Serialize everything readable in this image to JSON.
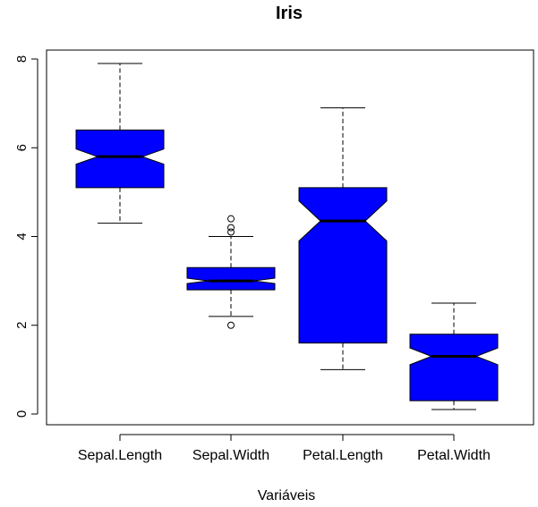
{
  "chart_data": {
    "type": "boxplot",
    "title": "Iris",
    "xlabel": "Variáveis",
    "ylabel": "",
    "ylim": [
      0,
      8
    ],
    "yticks": [
      "0",
      "2",
      "4",
      "6",
      "8"
    ],
    "notched": true,
    "fill_color": "#0000ff",
    "categories": [
      "Sepal.Length",
      "Sepal.Width",
      "Petal.Length",
      "Petal.Width"
    ],
    "boxes": [
      {
        "name": "Sepal.Length",
        "whisker_low": 4.3,
        "q1": 5.1,
        "median": 5.8,
        "q3": 6.4,
        "whisker_high": 7.9,
        "notch_low": 5.63,
        "notch_high": 5.97,
        "outliers": []
      },
      {
        "name": "Sepal.Width",
        "whisker_low": 2.2,
        "q1": 2.8,
        "median": 3.0,
        "q3": 3.3,
        "whisker_high": 4.0,
        "notch_low": 2.94,
        "notch_high": 3.06,
        "outliers": [
          2.0,
          4.1,
          4.2,
          4.4
        ]
      },
      {
        "name": "Petal.Length",
        "whisker_low": 1.0,
        "q1": 1.6,
        "median": 4.35,
        "q3": 5.1,
        "whisker_high": 6.9,
        "notch_low": 3.9,
        "notch_high": 4.8,
        "outliers": []
      },
      {
        "name": "Petal.Width",
        "whisker_low": 0.1,
        "q1": 0.3,
        "median": 1.3,
        "q3": 1.8,
        "whisker_high": 2.5,
        "notch_low": 1.11,
        "notch_high": 1.49,
        "outliers": []
      }
    ]
  }
}
